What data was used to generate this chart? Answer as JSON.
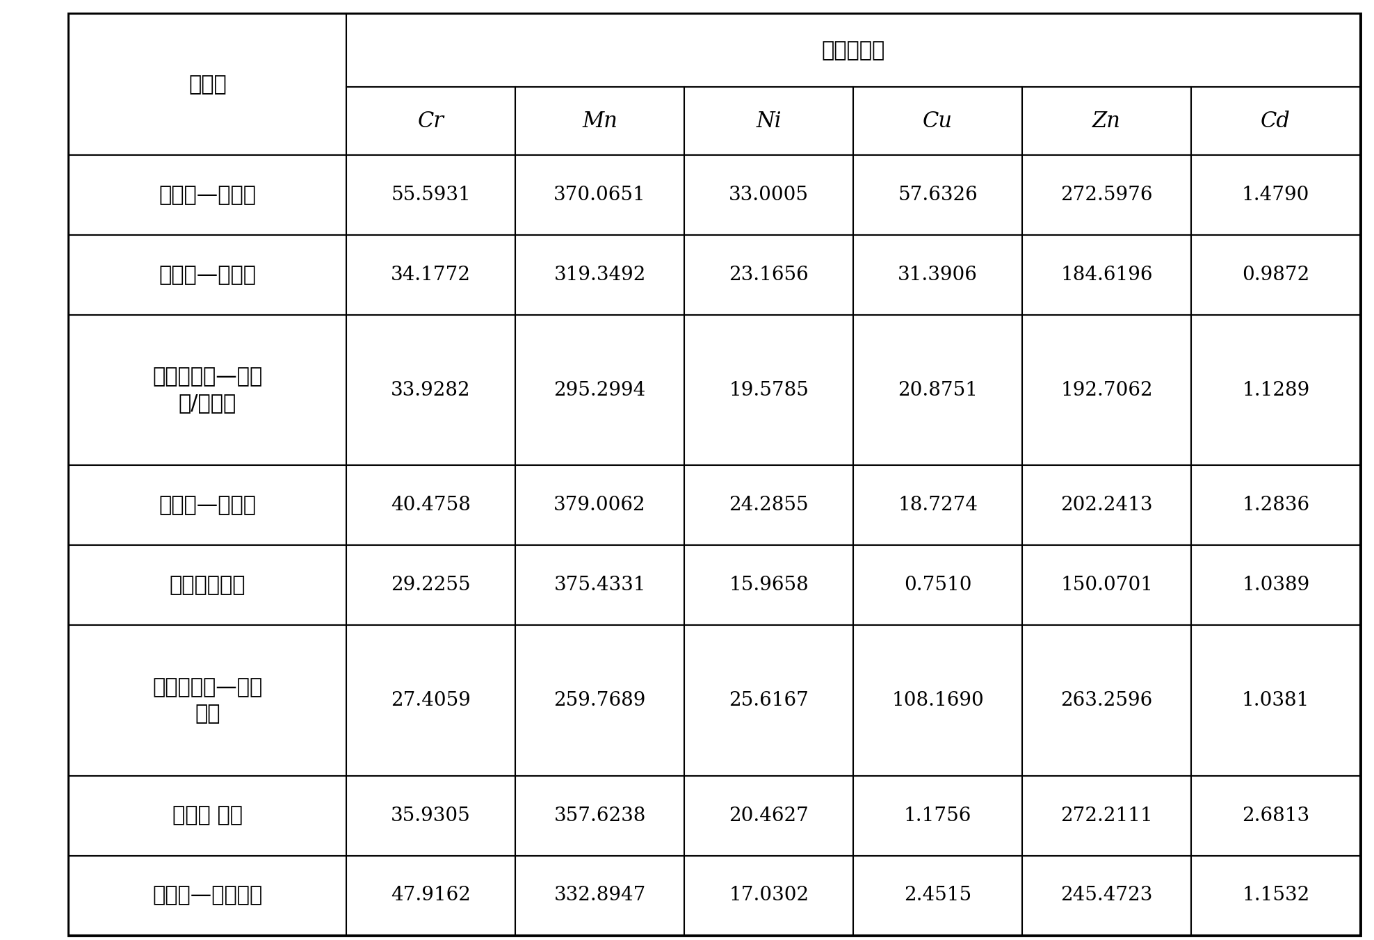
{
  "title_col": "采样地",
  "title_group": "重金属含量",
  "col_headers": [
    "Cr",
    "Mn",
    "Ni",
    "Cu",
    "Zn",
    "Cd"
  ],
  "row_labels": [
    "芜园道—红旗路",
    "卫津路—双峰道",
    "金钒河大街—育红\n路/红星路",
    "南运河—复兴路",
    "普济河立交桥",
    "吴家窑大街—气象\n台路",
    "东兴路 蝶桥",
    "八纹路—十一经路"
  ],
  "data": [
    [
      55.5931,
      370.0651,
      33.0005,
      57.6326,
      272.5976,
      1.479
    ],
    [
      34.1772,
      319.3492,
      23.1656,
      31.3906,
      184.6196,
      0.9872
    ],
    [
      33.9282,
      295.2994,
      19.5785,
      20.8751,
      192.7062,
      1.1289
    ],
    [
      40.4758,
      379.0062,
      24.2855,
      18.7274,
      202.2413,
      1.2836
    ],
    [
      29.2255,
      375.4331,
      15.9658,
      0.751,
      150.0701,
      1.0389
    ],
    [
      27.4059,
      259.7689,
      25.6167,
      108.169,
      263.2596,
      1.0381
    ],
    [
      35.9305,
      357.6238,
      20.4627,
      1.1756,
      272.2111,
      2.6813
    ],
    [
      47.9162,
      332.8947,
      17.0302,
      2.4515,
      245.4723,
      1.1532
    ]
  ],
  "data_formats": [
    "55.5931",
    "370.0651",
    "33.0005",
    "57.6326",
    "272.5976",
    "1.4790",
    "34.1772",
    "319.3492",
    "23.1656",
    "31.3906",
    "184.6196",
    "0.9872",
    "33.9282",
    "295.2994",
    "19.5785",
    "20.8751",
    "192.7062",
    "1.1289",
    "40.4758",
    "379.0062",
    "24.2855",
    "18.7274",
    "202.2413",
    "1.2836",
    "29.2255",
    "375.4331",
    "15.9658",
    "0.7510",
    "150.0701",
    "1.0389",
    "27.4059",
    "259.7689",
    "25.6167",
    "108.1690",
    "263.2596",
    "1.0381",
    "35.9305",
    "357.6238",
    "20.4627",
    "1.1756",
    "272.2111",
    "2.6813",
    "47.9162",
    "332.8947",
    "17.0302",
    "2.4515",
    "245.4723",
    "1.1532"
  ],
  "background_color": "#ffffff",
  "outer_lw": 3.5,
  "inner_lw": 1.5,
  "font_size_chinese": 22,
  "font_size_latin": 22,
  "font_size_data": 20
}
